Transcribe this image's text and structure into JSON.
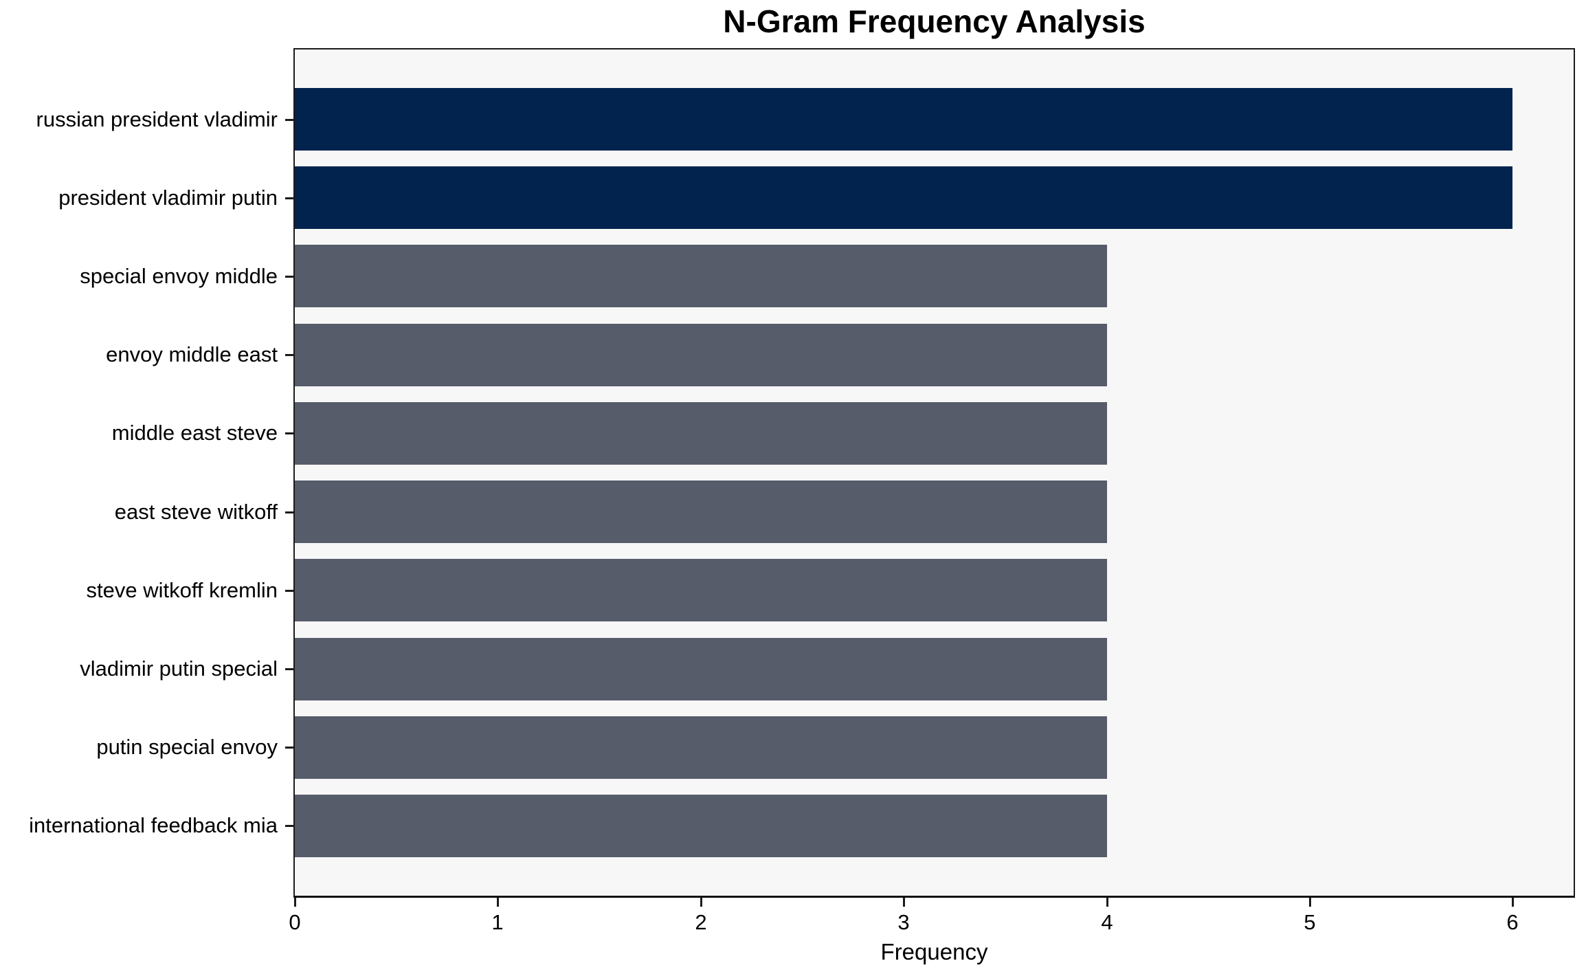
{
  "title": "N-Gram Frequency Analysis",
  "chart_data": {
    "type": "bar",
    "orientation": "horizontal",
    "title": "N-Gram Frequency Analysis",
    "xlabel": "Frequency",
    "ylabel": "",
    "categories": [
      "russian president vladimir",
      "president vladimir putin",
      "special envoy middle",
      "envoy middle east",
      "middle east steve",
      "east steve witkoff",
      "steve witkoff kremlin",
      "vladimir putin special",
      "putin special envoy",
      "international feedback mia"
    ],
    "values": [
      6,
      6,
      4,
      4,
      4,
      4,
      4,
      4,
      4,
      4
    ],
    "bar_colors": [
      "#02234e",
      "#02234e",
      "#575c6b",
      "#575c6b",
      "#575c6b",
      "#575c6b",
      "#575c6b",
      "#575c6b",
      "#575c6b",
      "#575c6b"
    ],
    "x_ticks": [
      0,
      1,
      2,
      3,
      4,
      5,
      6
    ],
    "xlim": [
      0,
      6.3
    ],
    "grid": false,
    "legend": null,
    "colors": {
      "highlight_bar": "#02234e",
      "base_bar": "#575c6b",
      "plot_background": "#f7f7f7",
      "figure_background": "#ffffff",
      "spine": "#1b1b1b",
      "text": "#000000"
    }
  }
}
